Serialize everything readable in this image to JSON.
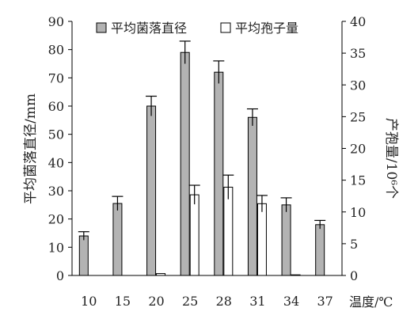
{
  "chart_data": {
    "type": "bar",
    "categories": [
      "10",
      "15",
      "20",
      "25",
      "28",
      "31",
      "34",
      "37"
    ],
    "xlabel": "温度/℃",
    "ylabel": "平均菌落直径/mm",
    "y2label": "产孢量/10⁶个",
    "ylim": [
      0,
      90
    ],
    "y2lim": [
      0,
      40
    ],
    "yticks": [
      "0",
      "10",
      "20",
      "30",
      "40",
      "50",
      "60",
      "70",
      "80",
      "90"
    ],
    "y2ticks": [
      "0",
      "5",
      "10",
      "15",
      "20",
      "25",
      "30",
      "35",
      "40"
    ],
    "legend_position": "top",
    "series": [
      {
        "name": "平均菌落直径",
        "axis": "left",
        "color": "#b3b3b3",
        "values": [
          14,
          25.5,
          60,
          79,
          72,
          56,
          25,
          18
        ],
        "errors": [
          1.5,
          2.5,
          3.5,
          4,
          4,
          3,
          2.5,
          1.5
        ]
      },
      {
        "name": "平均孢子量",
        "axis": "right",
        "color": "#ffffff",
        "values": [
          0,
          0,
          0.3,
          12.7,
          13.9,
          11.3,
          0.1,
          0
        ],
        "errors": [
          0,
          0,
          0,
          1.5,
          1.9,
          1.3,
          0,
          0
        ]
      }
    ]
  }
}
